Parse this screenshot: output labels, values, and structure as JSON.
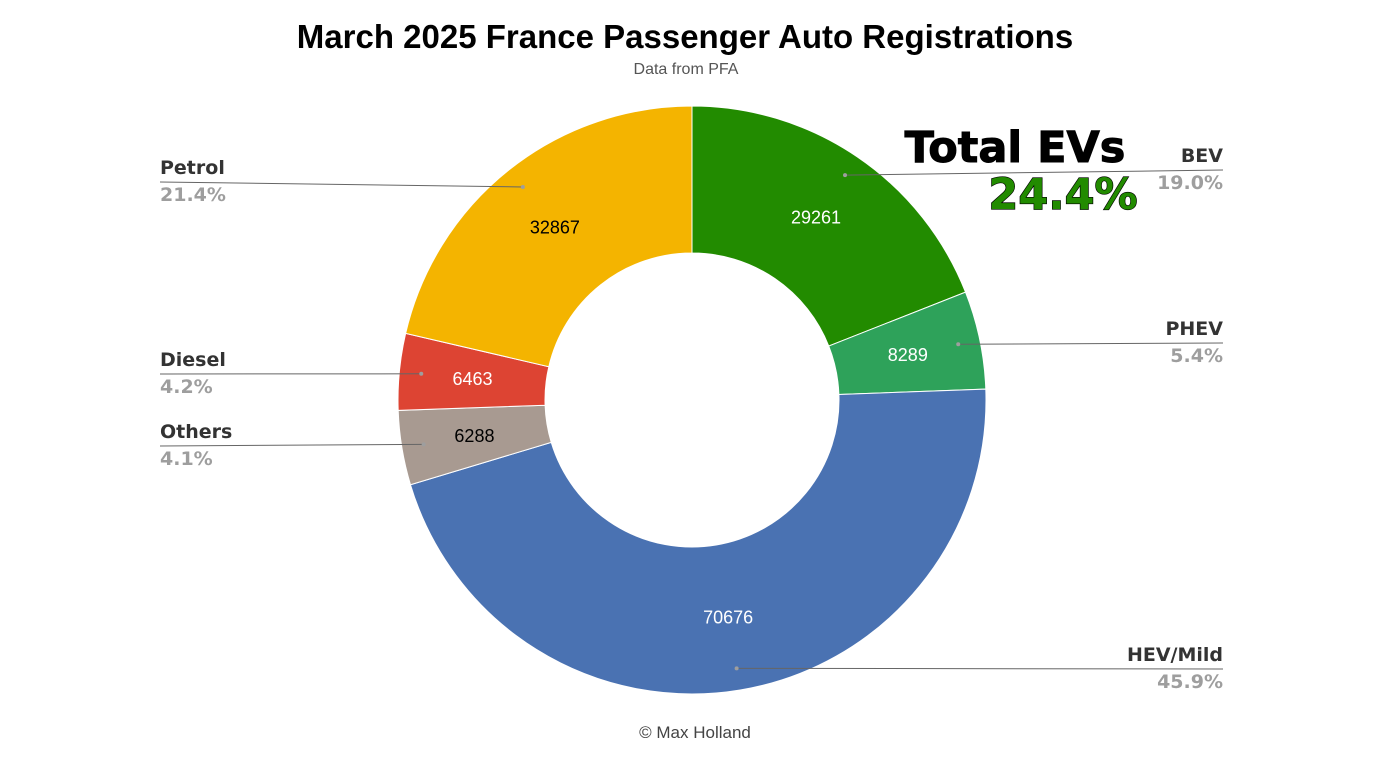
{
  "chart_data": {
    "type": "pie",
    "donut": true,
    "title": "March 2025 France Passenger Auto Registrations",
    "subtitle": "Data from PFA",
    "footer": "© Max Holland",
    "slices": [
      {
        "label": "BEV",
        "value": 29261,
        "percent": "19.0%",
        "color": "#228B00",
        "value_color": "#ffffff",
        "label_side": "right"
      },
      {
        "label": "PHEV",
        "value": 8289,
        "percent": "5.4%",
        "color": "#2EA25A",
        "value_color": "#ffffff",
        "label_side": "right"
      },
      {
        "label": "HEV/Mild",
        "value": 70676,
        "percent": "45.9%",
        "color": "#4A72B2",
        "value_color": "#ffffff",
        "label_side": "right"
      },
      {
        "label": "Others",
        "value": 6288,
        "percent": "4.1%",
        "color": "#A89A91",
        "value_color": "#000000",
        "label_side": "left"
      },
      {
        "label": "Diesel",
        "value": 6463,
        "percent": "4.2%",
        "color": "#DD4433",
        "value_color": "#ffffff",
        "label_side": "left"
      },
      {
        "label": "Petrol",
        "value": 32867,
        "percent": "21.4%",
        "color": "#F4B400",
        "value_color": "#000000",
        "label_side": "left"
      }
    ],
    "annotation": {
      "title": "Total EVs",
      "value": "24.4%",
      "value_color": "#228B00"
    }
  }
}
